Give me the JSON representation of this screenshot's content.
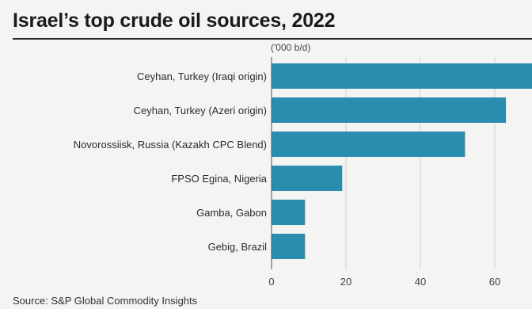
{
  "chart_data": {
    "type": "bar",
    "orientation": "horizontal",
    "title": "Israel’s top crude oil sources, 2022",
    "unit_label": "('000 b/d)",
    "source": "Source: S&P Global Commodity Insights",
    "categories": [
      "Ceyhan, Turkey (Iraqi origin)",
      "Ceyhan, Turkey (Azeri origin)",
      "Novorossiisk, Russia (Kazakh CPC Blend)",
      "FPSO Egina, Nigeria",
      "Gamba, Gabon",
      "Gebig, Brazil"
    ],
    "values": [
      70,
      63,
      52,
      19,
      9,
      9
    ],
    "xlim": [
      0,
      70
    ],
    "xticks": [
      0,
      20,
      40,
      60
    ],
    "grid": true,
    "bar_color": "#2a8db0"
  }
}
